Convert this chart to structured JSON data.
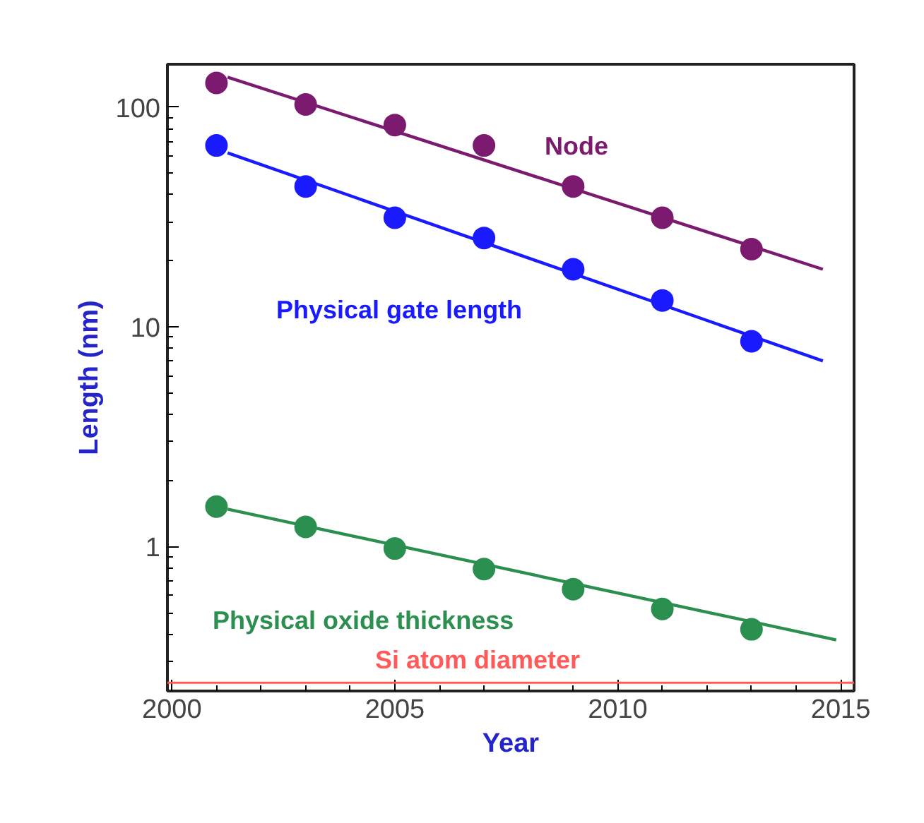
{
  "chart_data": {
    "type": "scatter",
    "xlabel": "Year",
    "ylabel": "Length (nm)",
    "log": "y",
    "marker": "circle",
    "grid": false,
    "x": [
      2001,
      2003,
      2005,
      2007,
      2009,
      2011,
      2013
    ],
    "xlim": [
      1999.9,
      2015.3
    ],
    "xticks": [
      2000,
      2005,
      2010,
      2015
    ],
    "ylim": [
      0.22,
      157
    ],
    "yticks": [
      1,
      10,
      100
    ],
    "series": [
      {
        "name": "Node",
        "color": "#7b1a6e",
        "values": [
          129,
          103,
          83,
          67,
          43.6,
          31.4,
          22.6
        ]
      },
      {
        "name": "Physical gate length",
        "color": "#1a1aff",
        "values": [
          67,
          43.6,
          31.4,
          25.4,
          18.3,
          13.2,
          8.6
        ]
      },
      {
        "name": "Physical oxide thickness",
        "color": "#2a8f4f",
        "values": [
          1.52,
          1.23,
          0.98,
          0.79,
          0.64,
          0.52,
          0.42
        ]
      },
      {
        "type": "line",
        "marker": "none",
        "color": "#7b1a6e",
        "x": [
          2001.25,
          2014.6
        ],
        "values": [
          137,
          18.3
        ]
      },
      {
        "type": "line",
        "marker": "none",
        "color": "#1a1aff",
        "x": [
          2001.25,
          2014.6
        ],
        "values": [
          62,
          7.0
        ]
      },
      {
        "type": "line",
        "marker": "none",
        "color": "#2a8f4f",
        "x": [
          2001.25,
          2014.9
        ],
        "values": [
          1.48,
          0.376
        ]
      }
    ],
    "ref_lines": [
      {
        "axis": "y",
        "value": 0.24,
        "label": "Si atom diameter",
        "color": "#ff5a5a"
      }
    ]
  }
}
